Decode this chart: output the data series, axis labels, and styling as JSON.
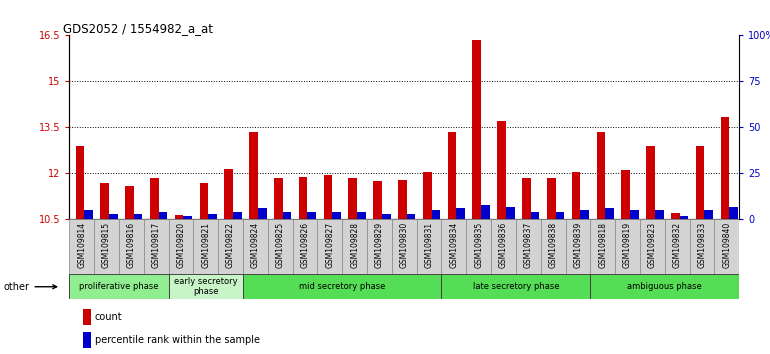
{
  "title": "GDS2052 / 1554982_a_at",
  "samples": [
    "GSM109814",
    "GSM109815",
    "GSM109816",
    "GSM109817",
    "GSM109820",
    "GSM109821",
    "GSM109822",
    "GSM109824",
    "GSM109825",
    "GSM109826",
    "GSM109827",
    "GSM109828",
    "GSM109829",
    "GSM109830",
    "GSM109831",
    "GSM109834",
    "GSM109835",
    "GSM109836",
    "GSM109837",
    "GSM109838",
    "GSM109839",
    "GSM109818",
    "GSM109819",
    "GSM109823",
    "GSM109832",
    "GSM109833",
    "GSM109840"
  ],
  "count_values": [
    12.9,
    11.7,
    11.6,
    11.85,
    10.65,
    11.7,
    12.15,
    13.35,
    11.85,
    11.9,
    11.95,
    11.85,
    11.75,
    11.8,
    12.05,
    13.35,
    16.35,
    13.7,
    11.85,
    11.85,
    12.05,
    13.35,
    12.1,
    12.9,
    10.7,
    12.9,
    13.85
  ],
  "percentile_values": [
    5,
    3,
    3,
    4,
    2,
    3,
    4,
    6,
    4,
    4,
    4,
    4,
    3,
    3,
    5,
    6,
    8,
    7,
    4,
    4,
    5,
    6,
    5,
    5,
    2,
    5,
    7
  ],
  "phases": [
    {
      "label": "proliferative phase",
      "start": 0,
      "end": 4,
      "color": "#90EE90"
    },
    {
      "label": "early secretory\nphase",
      "start": 4,
      "end": 7,
      "color": "#c8f5c8"
    },
    {
      "label": "mid secretory phase",
      "start": 7,
      "end": 15,
      "color": "#55dd55"
    },
    {
      "label": "late secretory phase",
      "start": 15,
      "end": 21,
      "color": "#55dd55"
    },
    {
      "label": "ambiguous phase",
      "start": 21,
      "end": 27,
      "color": "#55dd55"
    }
  ],
  "ylim_left": [
    10.5,
    16.5
  ],
  "ylim_right": [
    0,
    100
  ],
  "yticks_left": [
    10.5,
    12.0,
    13.5,
    15.0,
    16.5
  ],
  "yticks_right": [
    0,
    25,
    50,
    75,
    100
  ],
  "ytick_labels_left": [
    "10.5",
    "12",
    "13.5",
    "15",
    "16.5"
  ],
  "ytick_labels_right": [
    "0",
    "25",
    "50",
    "75",
    "100%"
  ],
  "bar_width": 0.35,
  "count_color": "#cc0000",
  "percentile_color": "#0000cc",
  "bg_color": "#ffffff",
  "xtick_bg": "#d3d3d3",
  "other_label": "other",
  "legend_count": "count",
  "legend_percentile": "percentile rank within the sample"
}
